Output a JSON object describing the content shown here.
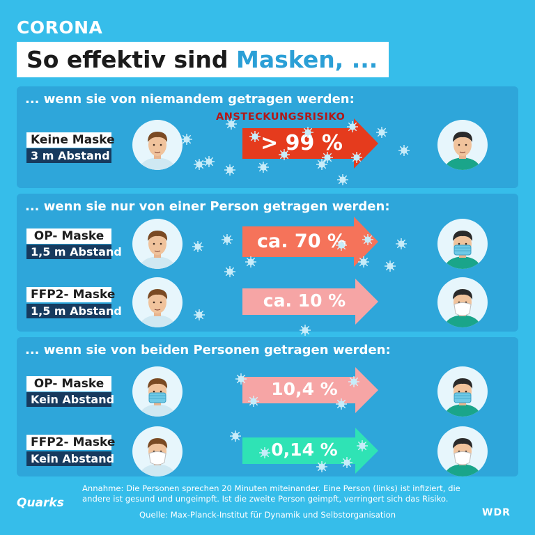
{
  "header": {
    "kicker": "CORONA",
    "title_main": "So effektiv sind ",
    "title_accent": "Masken, ..."
  },
  "risk_label": "ANSTECKUNGSRISIKO",
  "colors": {
    "background": "#36bdea",
    "section": "#2ea6da",
    "label_dark": "#173a5e",
    "arrow_high": "#e53b1d",
    "arrow_mid": "#f5735a",
    "arrow_low": "#f6a5a5",
    "arrow_min": "#2fe3b5",
    "accent": "#2b9fd6"
  },
  "sections": [
    {
      "heading": "... wenn sie von niemandem getragen werden:"
    },
    {
      "heading": "... wenn sie nur von einer Person getragen werden:"
    },
    {
      "heading": "... wenn sie von beiden Personen getragen werden:"
    }
  ],
  "scenarios": [
    {
      "mask": "Keine Maske",
      "distance": "3 m Abstand",
      "risk": "> 99 %",
      "left_mask": "none",
      "right_mask": "none",
      "arrow_color": "#e53b1d"
    },
    {
      "mask": "OP- Maske",
      "distance": "1,5 m Abstand",
      "risk": "ca. 70 %",
      "left_mask": "none",
      "right_mask": "surgical",
      "arrow_color": "#f5735a"
    },
    {
      "mask": "FFP2- Maske",
      "distance": "1,5 m Abstand",
      "risk": "ca. 10 %",
      "left_mask": "none",
      "right_mask": "ffp2",
      "arrow_color": "#f6a5a5"
    },
    {
      "mask": "OP- Maske",
      "distance": "Kein Abstand",
      "risk": "10,4 %",
      "left_mask": "surgical",
      "right_mask": "surgical",
      "arrow_color": "#f6a5a5"
    },
    {
      "mask": "FFP2- Maske",
      "distance": "Kein Abstand",
      "risk": "0,14 %",
      "left_mask": "ffp2",
      "right_mask": "ffp2",
      "arrow_color": "#2fe3b5"
    }
  ],
  "footer": {
    "note": "Annahme: Die Personen sprechen 20 Minuten miteinander. Eine Person (links) ist infiziert, die andere ist gesund und ungeimpft. Ist die zweite Person geimpft, verringert sich das Risiko.",
    "source": "Quelle: Max-Planck-Institut für Dynamik und Selbstorganisation",
    "logo_left": "Quarks",
    "logo_right": "WDR"
  }
}
